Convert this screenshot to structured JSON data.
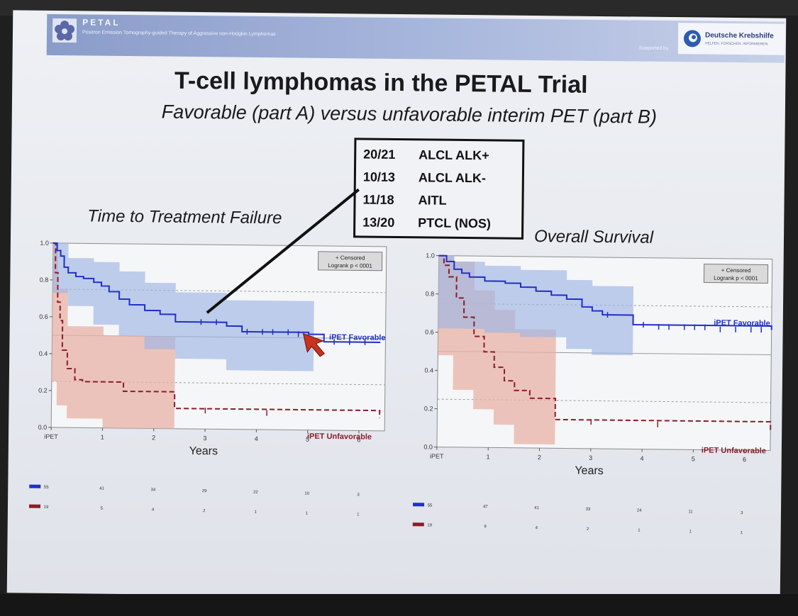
{
  "header": {
    "brand": "PETAL",
    "brand_subtitle": "Positron Emission Tomography-guided Therapy of Aggressive non-Hodgkin Lymphomas",
    "supported_by": "Supported by",
    "sponsor_name": "Deutsche Krebshilfe",
    "sponsor_subtitle": "HELFEN. FORSCHEN. INFORMIEREN.",
    "logo_icon": "petal-flower-icon",
    "sponsor_icon": "deutsche-krebshilfe-swirl-icon"
  },
  "slide": {
    "title": "T-cell lymphomas in the PETAL Trial",
    "subtitle": "Favorable (part A) versus unfavorable interim PET (part B)"
  },
  "subtypes": [
    {
      "count": "20/21",
      "label": "ALCL ALK+"
    },
    {
      "count": "10/13",
      "label": "ALCL ALK-"
    },
    {
      "count": "11/18",
      "label": "AITL"
    },
    {
      "count": "13/20",
      "label": "PTCL (NOS)"
    }
  ],
  "colors": {
    "favorable": "#1f2fc8",
    "favorable_band": "#9eb6e4",
    "unfavorable": "#8a1c28",
    "unfavorable_band": "#e8b2a6",
    "reference_line": "#9a9a9a"
  },
  "chart_data": [
    {
      "type": "line",
      "title": "Time to Treatment Failure",
      "xlabel": "Years",
      "x_ticks": [
        "iPET",
        "1",
        "2",
        "3",
        "4",
        "5",
        "6"
      ],
      "xlim": [
        0,
        6.5
      ],
      "ylim": [
        0,
        1
      ],
      "y_ticks": [
        "0.0",
        "0.2",
        "0.4",
        "0.6",
        "0.8",
        "1.0"
      ],
      "legend_box": [
        "+ Censored",
        "Logrank p < 0001"
      ],
      "legend_position": "top-right",
      "series": [
        {
          "name": "iPET Favorable",
          "points": [
            [
              0,
              1.0
            ],
            [
              0.08,
              0.96
            ],
            [
              0.15,
              0.93
            ],
            [
              0.22,
              0.87
            ],
            [
              0.3,
              0.84
            ],
            [
              0.45,
              0.82
            ],
            [
              0.6,
              0.81
            ],
            [
              0.8,
              0.79
            ],
            [
              0.95,
              0.77
            ],
            [
              1.1,
              0.74
            ],
            [
              1.3,
              0.7
            ],
            [
              1.5,
              0.67
            ],
            [
              1.8,
              0.64
            ],
            [
              2.1,
              0.62
            ],
            [
              2.4,
              0.58
            ],
            [
              3.0,
              0.58
            ],
            [
              3.4,
              0.56
            ],
            [
              3.7,
              0.53
            ],
            [
              4.5,
              0.53
            ],
            [
              5.0,
              0.52
            ],
            [
              5.3,
              0.48
            ],
            [
              6.4,
              0.48
            ]
          ],
          "ci_upper": [
            [
              0,
              1.0
            ],
            [
              0.3,
              0.92
            ],
            [
              0.8,
              0.9
            ],
            [
              1.3,
              0.85
            ],
            [
              1.8,
              0.79
            ],
            [
              2.4,
              0.74
            ],
            [
              3.4,
              0.7
            ],
            [
              5.1,
              0.68
            ],
            [
              5.1,
              0.68
            ]
          ],
          "ci_lower": [
            [
              0,
              0.95
            ],
            [
              0.3,
              0.73
            ],
            [
              0.8,
              0.66
            ],
            [
              1.3,
              0.56
            ],
            [
              1.8,
              0.5
            ],
            [
              2.4,
              0.43
            ],
            [
              3.4,
              0.38
            ],
            [
              5.1,
              0.32
            ],
            [
              5.1,
              0.32
            ]
          ],
          "censored": [
            [
              2.9,
              0.58
            ],
            [
              3.2,
              0.58
            ],
            [
              3.8,
              0.53
            ],
            [
              4.1,
              0.53
            ],
            [
              4.3,
              0.53
            ],
            [
              4.6,
              0.53
            ],
            [
              4.8,
              0.52
            ],
            [
              5.5,
              0.48
            ],
            [
              5.8,
              0.48
            ],
            [
              6.1,
              0.48
            ]
          ]
        },
        {
          "name": "iPET Unfavorable",
          "points": [
            [
              0,
              1.0
            ],
            [
              0.05,
              0.84
            ],
            [
              0.1,
              0.68
            ],
            [
              0.15,
              0.58
            ],
            [
              0.2,
              0.42
            ],
            [
              0.3,
              0.32
            ],
            [
              0.45,
              0.26
            ],
            [
              0.6,
              0.25
            ],
            [
              1.0,
              0.25
            ],
            [
              1.4,
              0.2
            ],
            [
              2.0,
              0.2
            ],
            [
              2.4,
              0.11
            ],
            [
              6.4,
              0.07
            ]
          ],
          "ci_upper": [
            [
              0,
              1.0
            ],
            [
              0.1,
              0.75
            ],
            [
              0.3,
              0.55
            ],
            [
              1.0,
              0.5
            ],
            [
              2.4,
              0.45
            ],
            [
              2.4,
              0.45
            ]
          ],
          "ci_lower": [
            [
              0,
              0.35
            ],
            [
              0.1,
              0.25
            ],
            [
              0.3,
              0.12
            ],
            [
              1.0,
              0.05
            ],
            [
              2.4,
              0.0
            ],
            [
              2.4,
              0.0
            ]
          ],
          "censored": [
            [
              3.0,
              0.1
            ],
            [
              4.2,
              0.09
            ]
          ]
        }
      ],
      "reference_lines": [
        0.75,
        0.5,
        0.25
      ],
      "risk_table": [
        {
          "series": "iPET Favorable",
          "values": [
            "55",
            "41",
            "34",
            "29",
            "22",
            "10",
            "3"
          ]
        },
        {
          "series": "iPET Unfavorable",
          "values": [
            "19",
            "5",
            "4",
            "2",
            "1",
            "1",
            "1"
          ]
        }
      ]
    },
    {
      "type": "line",
      "title": "Overall Survival",
      "xlabel": "Years",
      "x_ticks": [
        "iPET",
        "1",
        "2",
        "3",
        "4",
        "5",
        "6"
      ],
      "xlim": [
        0,
        6.5
      ],
      "ylim": [
        0,
        1
      ],
      "y_ticks": [
        "0.0",
        "0.2",
        "0.4",
        "0.6",
        "0.8",
        "1.0"
      ],
      "legend_box": [
        "+ Censored",
        "Logrank p < 0001"
      ],
      "legend_position": "top-right",
      "series": [
        {
          "name": "iPET Favorable",
          "points": [
            [
              0,
              1.0
            ],
            [
              0.15,
              0.97
            ],
            [
              0.3,
              0.93
            ],
            [
              0.45,
              0.91
            ],
            [
              0.6,
              0.89
            ],
            [
              0.9,
              0.87
            ],
            [
              1.3,
              0.86
            ],
            [
              1.6,
              0.84
            ],
            [
              1.9,
              0.82
            ],
            [
              2.2,
              0.8
            ],
            [
              2.5,
              0.78
            ],
            [
              2.8,
              0.74
            ],
            [
              3.0,
              0.72
            ],
            [
              3.2,
              0.7
            ],
            [
              3.6,
              0.7
            ],
            [
              3.8,
              0.65
            ],
            [
              6.5,
              0.63
            ]
          ],
          "ci_upper": [
            [
              0,
              1.0
            ],
            [
              0.3,
              0.97
            ],
            [
              0.9,
              0.95
            ],
            [
              1.6,
              0.93
            ],
            [
              2.5,
              0.88
            ],
            [
              3.0,
              0.85
            ],
            [
              3.8,
              0.82
            ],
            [
              3.8,
              0.82
            ]
          ],
          "ci_lower": [
            [
              0,
              0.62
            ],
            [
              0.3,
              0.62
            ],
            [
              0.9,
              0.62
            ],
            [
              1.6,
              0.6
            ],
            [
              2.5,
              0.58
            ],
            [
              3.0,
              0.52
            ],
            [
              3.8,
              0.49
            ],
            [
              3.8,
              0.49
            ]
          ],
          "censored": [
            [
              3.3,
              0.7
            ],
            [
              4.0,
              0.65
            ],
            [
              4.3,
              0.64
            ],
            [
              4.5,
              0.64
            ],
            [
              4.8,
              0.64
            ],
            [
              5.0,
              0.64
            ],
            [
              5.2,
              0.64
            ],
            [
              5.5,
              0.63
            ],
            [
              5.8,
              0.63
            ],
            [
              6.1,
              0.63
            ],
            [
              6.3,
              0.63
            ]
          ]
        },
        {
          "name": "iPET Unfavorable",
          "points": [
            [
              0,
              1.0
            ],
            [
              0.1,
              0.95
            ],
            [
              0.2,
              0.89
            ],
            [
              0.35,
              0.78
            ],
            [
              0.5,
              0.68
            ],
            [
              0.7,
              0.58
            ],
            [
              0.9,
              0.5
            ],
            [
              1.1,
              0.42
            ],
            [
              1.3,
              0.35
            ],
            [
              1.5,
              0.3
            ],
            [
              1.8,
              0.26
            ],
            [
              2.3,
              0.15
            ],
            [
              6.5,
              0.1
            ]
          ],
          "ci_upper": [
            [
              0,
              1.0
            ],
            [
              0.3,
              0.97
            ],
            [
              0.7,
              0.82
            ],
            [
              1.1,
              0.72
            ],
            [
              1.5,
              0.62
            ],
            [
              2.3,
              0.55
            ],
            [
              2.3,
              0.55
            ]
          ],
          "ci_lower": [
            [
              0,
              0.52
            ],
            [
              0.3,
              0.48
            ],
            [
              0.7,
              0.3
            ],
            [
              1.1,
              0.2
            ],
            [
              1.5,
              0.12
            ],
            [
              2.3,
              0.02
            ],
            [
              2.3,
              0.02
            ]
          ],
          "censored": [
            [
              3.0,
              0.14
            ],
            [
              4.3,
              0.13
            ]
          ]
        }
      ],
      "reference_lines": [
        0.75,
        0.5,
        0.25
      ],
      "risk_table": [
        {
          "series": "iPET Favorable",
          "values": [
            "55",
            "47",
            "41",
            "33",
            "24",
            "11",
            "3"
          ]
        },
        {
          "series": "iPET Unfavorable",
          "values": [
            "19",
            "9",
            "4",
            "2",
            "1",
            "1",
            "1"
          ]
        }
      ]
    }
  ]
}
